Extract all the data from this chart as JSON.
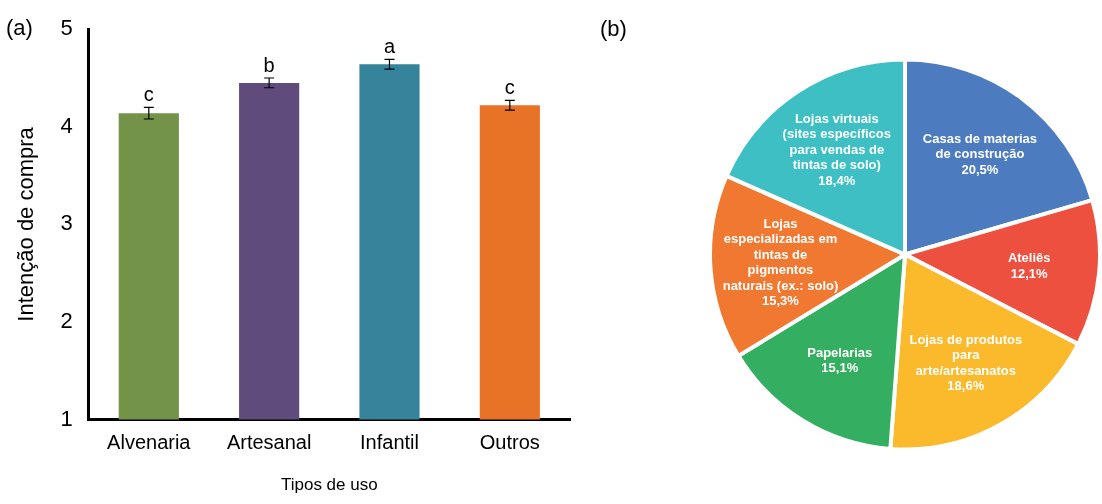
{
  "chart_data": [
    {
      "type": "bar",
      "title": "(a)",
      "xlabel": "Tipos de uso",
      "ylabel": "Intenção de compra",
      "categories": [
        "Alvenaria",
        "Artesanal",
        "Infantil",
        "Outros"
      ],
      "values": [
        4.14,
        4.45,
        4.64,
        4.22
      ],
      "colors": [
        "#739348",
        "#5f4c7c",
        "#35849c",
        "#e87326"
      ],
      "errors": [
        0.06,
        0.05,
        0.05,
        0.05
      ],
      "ylim": [
        1,
        5
      ],
      "yticks": [
        1,
        2,
        3,
        4,
        5
      ],
      "grid": false,
      "legend": false,
      "annotations": [
        {
          "text": "c",
          "x": "Alvenaria",
          "y": 4.2
        },
        {
          "text": "b",
          "x": "Artesanal",
          "y": 4.5
        },
        {
          "text": "a",
          "x": "Infantil",
          "y": 4.69
        },
        {
          "text": "c",
          "x": "Outros",
          "y": 4.27
        }
      ]
    },
    {
      "type": "pie",
      "title": "(b)",
      "categories": [
        "Casas de materias de construção",
        "Ateliês",
        "Lojas de produtos para arte/artesanatos",
        "Papelarias",
        "Lojas especializadas em tintas de pigmentos naturais (ex.: solo)",
        "Lojas virtuais (sites específicos para vendas de tintas de solo)"
      ],
      "values": [
        20.5,
        12.1,
        18.6,
        15.1,
        15.3,
        18.4
      ],
      "colors": [
        "#4c7bbf",
        "#ee5040",
        "#fbb92c",
        "#34ae60",
        "#f07830",
        "#3dbfc4"
      ],
      "value_labels": [
        "20,5%",
        "12,1%",
        "18,6%",
        "15,1%",
        "15,3%",
        "18,4%"
      ],
      "legend": false
    }
  ]
}
